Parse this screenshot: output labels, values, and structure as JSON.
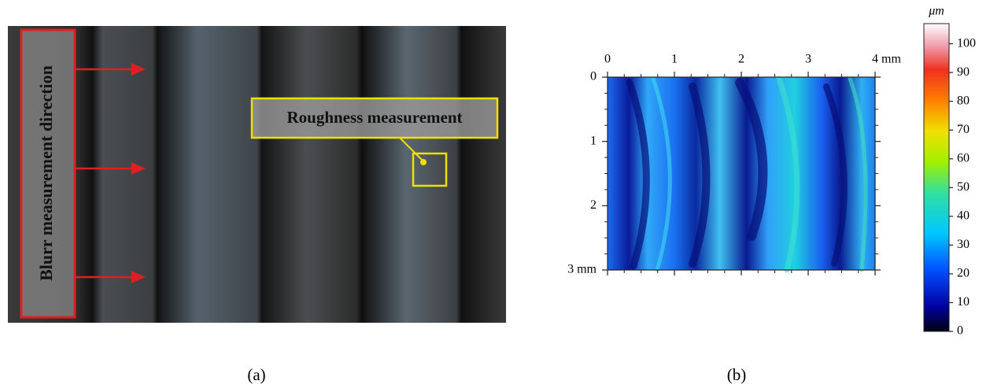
{
  "panel_a": {
    "direction_label": "Blurr measurement direction",
    "roughness_label": "Roughness measurement",
    "caption": "(a)"
  },
  "panel_b": {
    "xlim": [
      0,
      4
    ],
    "ylim": [
      0,
      3
    ],
    "xticks": [
      0,
      1,
      2,
      3,
      {
        "value": 4,
        "label": "4 mm"
      }
    ],
    "yticks": [
      0,
      1,
      2,
      {
        "value": 3,
        "label": "3 mm"
      }
    ],
    "colorbar": {
      "unit": "μm",
      "clim": [
        0,
        107
      ],
      "ticks": [
        0,
        10,
        20,
        30,
        40,
        50,
        60,
        70,
        80,
        90,
        100
      ]
    },
    "caption": "(b)"
  }
}
